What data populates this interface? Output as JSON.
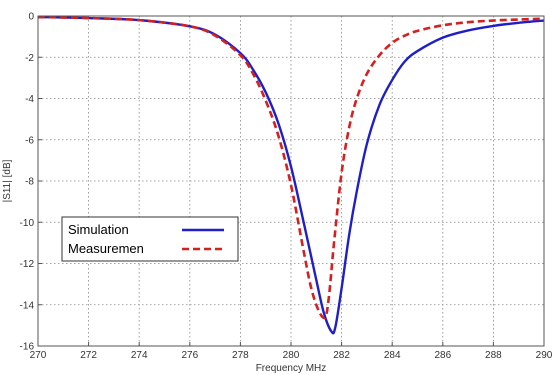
{
  "chart_data": {
    "type": "line",
    "title": "",
    "xlabel": "Frequency MHz",
    "ylabel": "|S11| [dB]",
    "xlim": [
      270,
      290
    ],
    "ylim": [
      -16,
      0
    ],
    "xticks": [
      "270",
      "272",
      "274",
      "276",
      "278",
      "280",
      "282",
      "284",
      "286",
      "288",
      "290"
    ],
    "yticks": [
      "0",
      "-2",
      "-4",
      "-6",
      "-8",
      "-10",
      "-12",
      "-14",
      "-16"
    ],
    "grid": true,
    "legend_position": "lower-left",
    "series": [
      {
        "name": "Simulation",
        "color": "#1f1fc8",
        "style": "solid",
        "x": [
          270,
          272,
          274,
          276,
          277,
          278,
          278.5,
          279,
          279.5,
          280,
          280.5,
          281,
          281.3,
          281.6,
          281.75,
          282,
          282.3,
          282.6,
          283,
          283.5,
          284,
          284.5,
          285,
          286,
          287,
          288,
          289,
          290
        ],
        "y": [
          -0.05,
          -0.1,
          -0.2,
          -0.5,
          -0.9,
          -1.8,
          -2.6,
          -3.7,
          -5.2,
          -7.3,
          -10.0,
          -12.8,
          -14.4,
          -15.3,
          -15.1,
          -13.2,
          -10.6,
          -8.5,
          -6.2,
          -4.3,
          -3.1,
          -2.2,
          -1.7,
          -1.05,
          -0.7,
          -0.48,
          -0.33,
          -0.22
        ]
      },
      {
        "name": "Measuremen",
        "color": "#d42020",
        "style": "dashed",
        "x": [
          270,
          272,
          274,
          276,
          277,
          278,
          278.5,
          279,
          279.5,
          280,
          280.5,
          280.8,
          281.1,
          281.35,
          281.5,
          281.7,
          282,
          282.3,
          282.6,
          283,
          283.5,
          284,
          284.5,
          285,
          286,
          287,
          288,
          289,
          290
        ],
        "y": [
          -0.05,
          -0.1,
          -0.2,
          -0.5,
          -0.95,
          -1.9,
          -2.8,
          -4.1,
          -5.8,
          -8.2,
          -11.4,
          -13.2,
          -14.3,
          -14.6,
          -13.6,
          -11.0,
          -7.6,
          -5.4,
          -4.0,
          -2.8,
          -1.9,
          -1.3,
          -0.95,
          -0.72,
          -0.45,
          -0.3,
          -0.22,
          -0.17,
          -0.13
        ]
      }
    ]
  }
}
